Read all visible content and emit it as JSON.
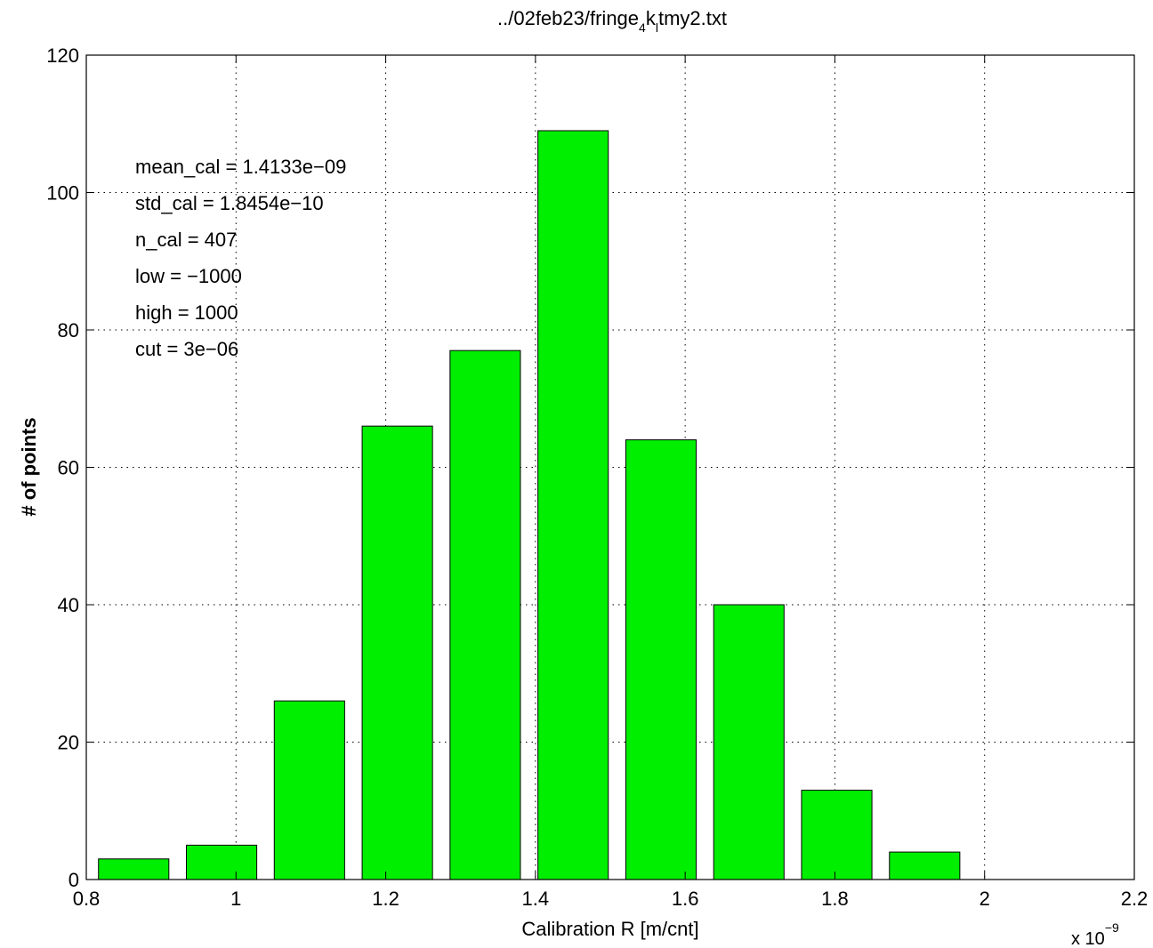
{
  "chart_data": {
    "type": "bar",
    "title": "../02feb23/fringe",
    "title_sub": "4",
    "title_mid": "k",
    "title_sub2": "l",
    "title_end": "tmy2.txt",
    "xlabel": "Calibration R [m/cnt]",
    "ylabel": "# of points",
    "x_exponent_label": "x 10",
    "x_exponent_power": "−9",
    "xlim": [
      0.8,
      2.2
    ],
    "ylim": [
      0,
      120
    ],
    "xticks": [
      0.8,
      1,
      1.2,
      1.4,
      1.6,
      1.8,
      2,
      2.2
    ],
    "xtick_labels": [
      "0.8",
      "1",
      "1.2",
      "1.4",
      "1.6",
      "1.8",
      "2",
      "2.2"
    ],
    "yticks": [
      0,
      20,
      40,
      60,
      80,
      100,
      120
    ],
    "ytick_labels": [
      "0",
      "20",
      "40",
      "60",
      "80",
      "100",
      "120"
    ],
    "grid": true,
    "bar_color": "#00ee00",
    "x": [
      0.8633,
      0.9807,
      1.0981,
      1.2155,
      1.3329,
      1.4503,
      1.5677,
      1.6851,
      1.8025,
      1.9199
    ],
    "values": [
      3,
      5,
      26,
      66,
      77,
      109,
      64,
      40,
      13,
      4
    ],
    "bar_width": 0.094,
    "annotations": [
      "mean_cal = 1.4133e−09",
      "std_cal = 1.8454e−10",
      "n_cal = 407",
      "low = −1000",
      "high = 1000",
      "cut = 3e−06"
    ]
  }
}
